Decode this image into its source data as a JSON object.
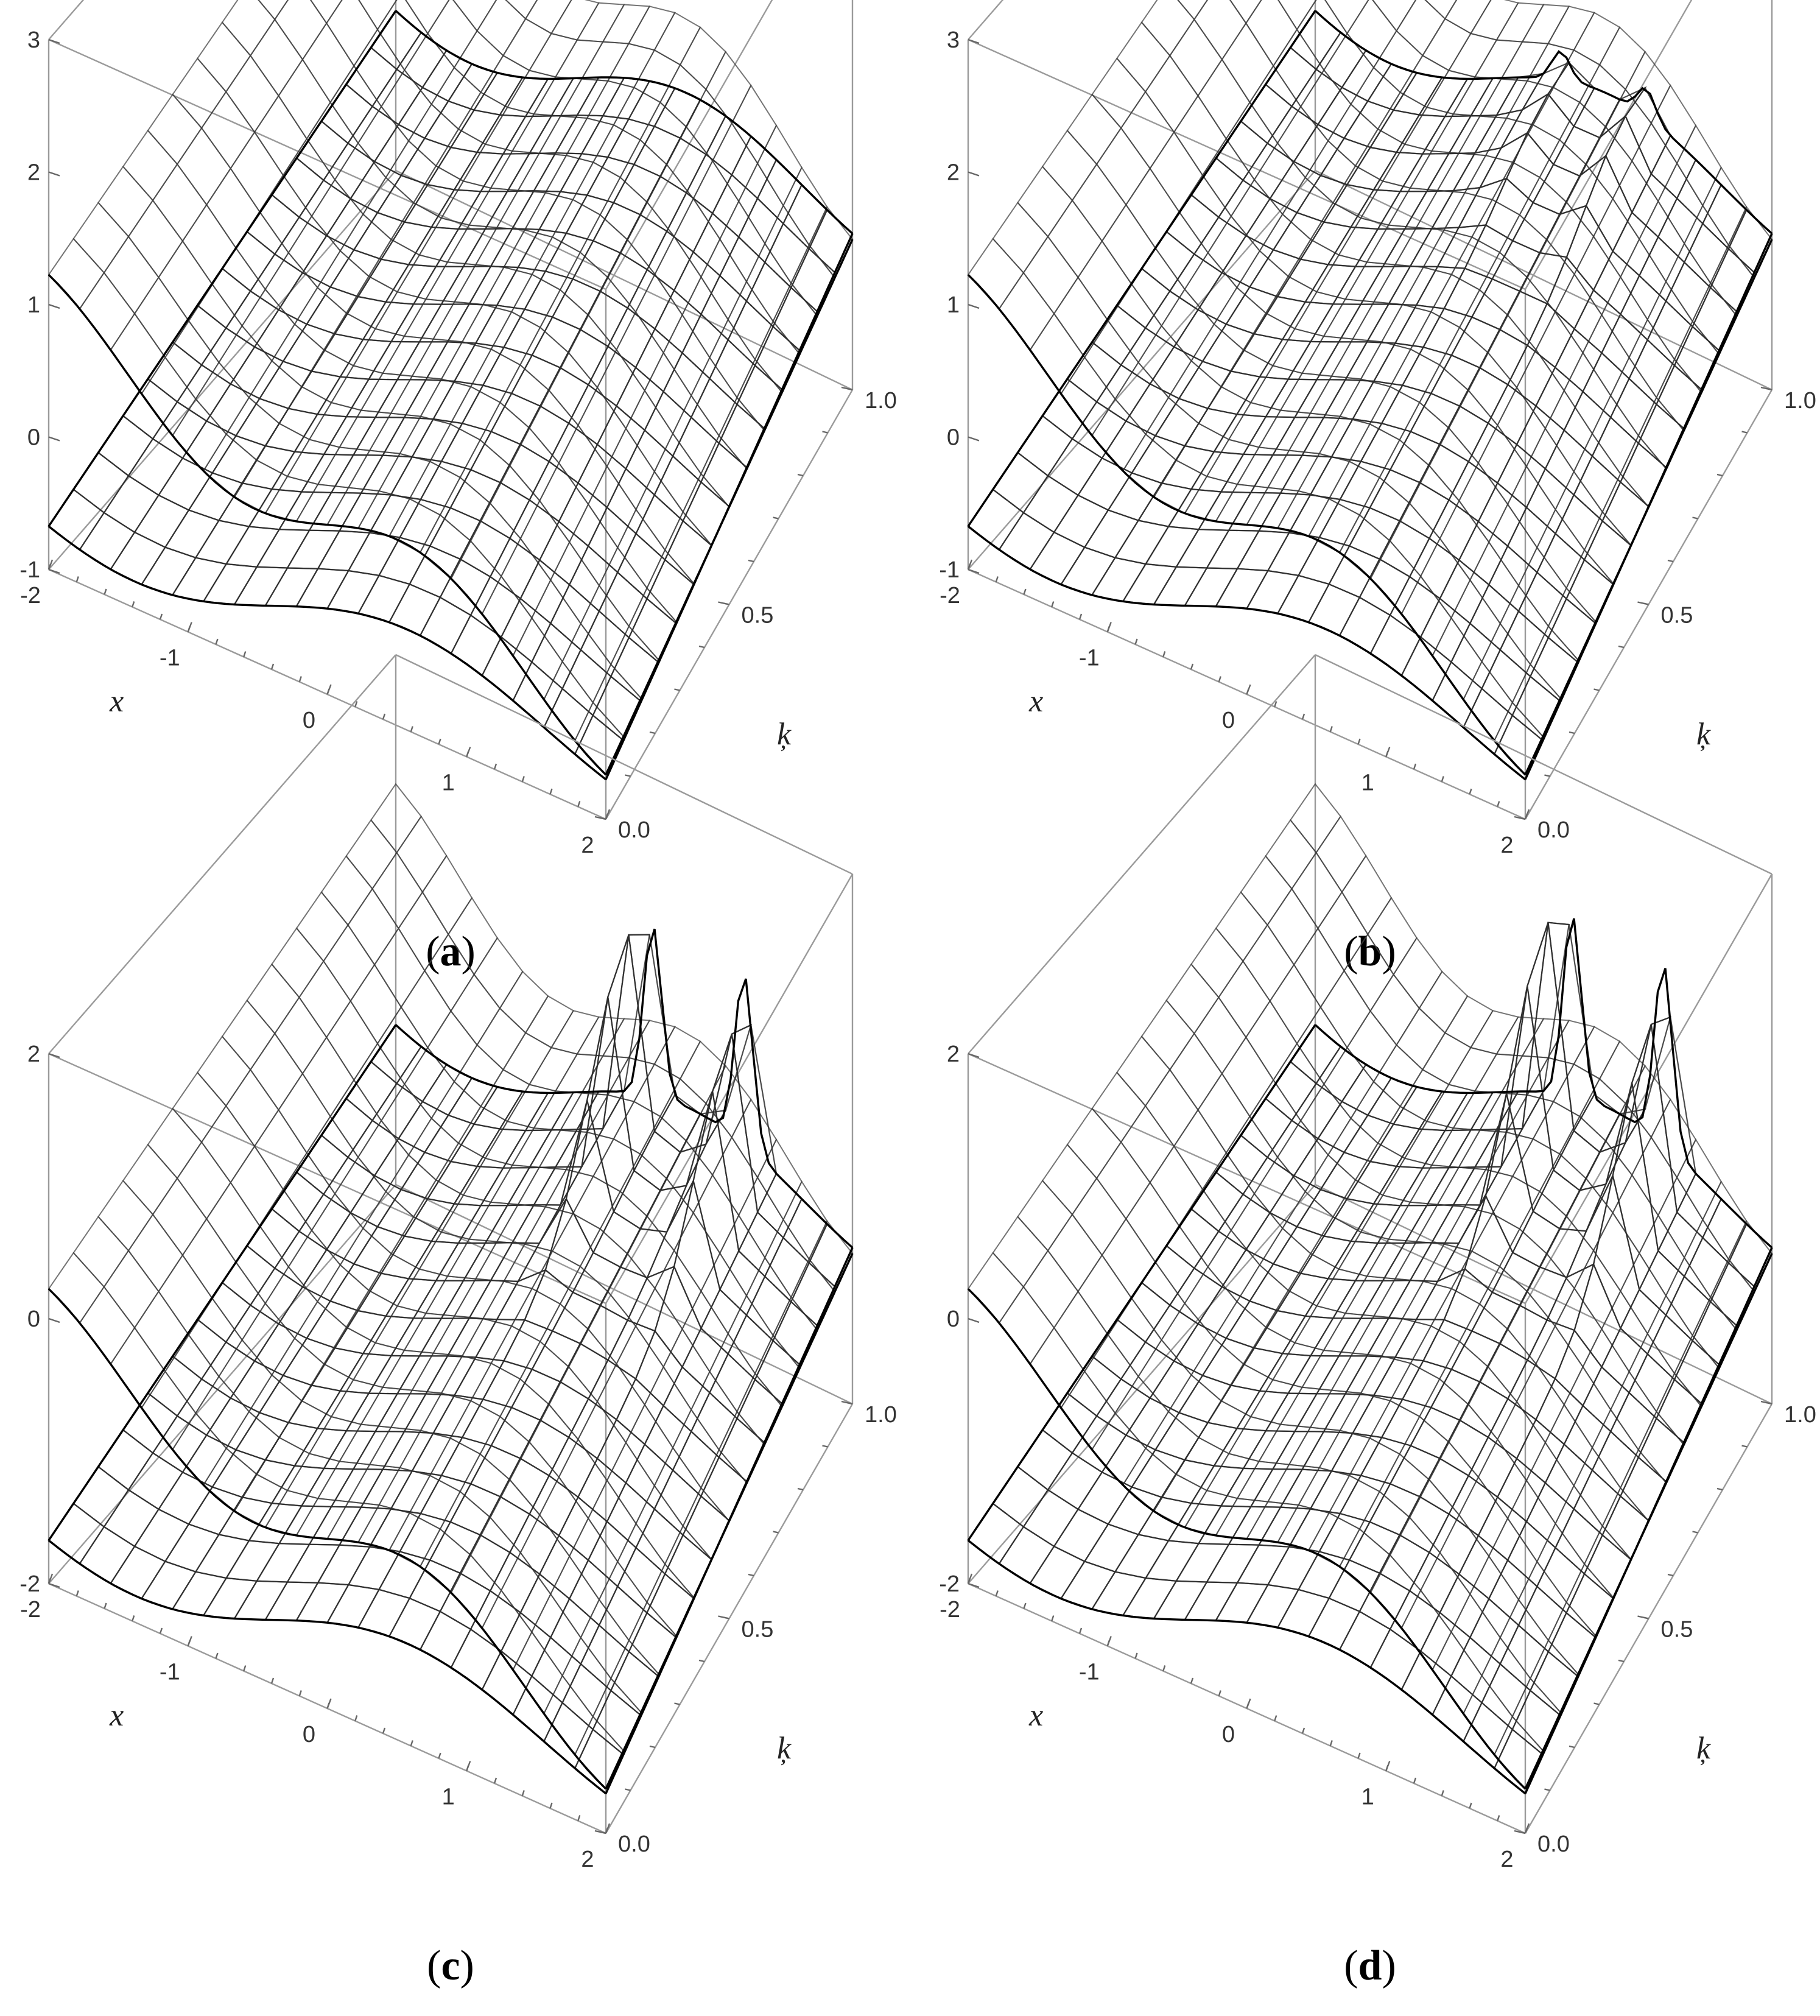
{
  "figure": {
    "panels": [
      {
        "id": "a",
        "caption_open": "(",
        "caption_letter": "a",
        "caption_close": ")"
      },
      {
        "id": "b",
        "caption_open": "(",
        "caption_letter": "b",
        "caption_close": ")"
      },
      {
        "id": "c",
        "caption_open": "(",
        "caption_letter": "c",
        "caption_close": ")"
      },
      {
        "id": "d",
        "caption_open": "(",
        "caption_letter": "d",
        "caption_close": ")"
      }
    ]
  },
  "chart_data": [
    {
      "panel": "a",
      "type": "surface3d",
      "title": "",
      "x_axis": {
        "label": "x",
        "range": [
          -2,
          2
        ],
        "ticks": [
          "-2",
          "-1",
          "0",
          "1",
          "2"
        ]
      },
      "y_axis": {
        "label": "ķ",
        "range": [
          0,
          1
        ],
        "ticks": [
          "0.0",
          "0.5",
          "1.0"
        ]
      },
      "z_axis": {
        "label": "",
        "range": [
          -1,
          3
        ],
        "ticks": [
          "-1",
          "0",
          "1",
          "2",
          "3"
        ]
      },
      "surfaces": [
        {
          "role": "top",
          "colormap": [
            "#b96a2c",
            "#f2a968",
            "#ffd9a6",
            "#7dd63a",
            "#a6ec52"
          ]
        },
        {
          "role": "underside",
          "colormap": [
            "#fff7c6",
            "#fbeea0",
            "#f5e282"
          ]
        }
      ],
      "peaks": []
    },
    {
      "panel": "b",
      "type": "surface3d",
      "title": "",
      "x_axis": {
        "label": "x",
        "range": [
          -2,
          2
        ],
        "ticks": [
          "-2",
          "-1",
          "0",
          "1",
          "2"
        ]
      },
      "y_axis": {
        "label": "ķ",
        "range": [
          0,
          1
        ],
        "ticks": [
          "0.0",
          "0.5",
          "1.0"
        ]
      },
      "z_axis": {
        "label": "",
        "range": [
          -1,
          3
        ],
        "ticks": [
          "-1",
          "0",
          "1",
          "2",
          "3"
        ]
      },
      "surfaces": [
        {
          "role": "top",
          "colormap": [
            "#fffbe3",
            "#fbe4ae",
            "#f2bf6a",
            "#fbe4ae",
            "#9fe85c",
            "#a9f2d6"
          ]
        },
        {
          "role": "underside",
          "colormap": [
            "#ffffff",
            "#ffffff"
          ]
        }
      ],
      "peaks": [
        {
          "x": 0.9,
          "y": 0.9,
          "height": 0.3
        },
        {
          "x": 0.15,
          "y": 0.9,
          "height": 0.3
        }
      ]
    },
    {
      "panel": "c",
      "type": "surface3d",
      "title": "",
      "x_axis": {
        "label": "x",
        "range": [
          -2,
          2
        ],
        "ticks": [
          "-2",
          "-1",
          "0",
          "1",
          "2"
        ]
      },
      "y_axis": {
        "label": "ķ",
        "range": [
          0,
          1
        ],
        "ticks": [
          "0.0",
          "0.5",
          "1.0"
        ]
      },
      "z_axis": {
        "label": "",
        "range": [
          -2,
          2
        ],
        "ticks": [
          "-2",
          "0",
          "2"
        ]
      },
      "surfaces": [
        {
          "role": "top",
          "colormap": [
            "#fffbe3",
            "#fcefc3",
            "#f4c06e",
            "#fcefc3",
            "#a6eb5a",
            "#a9f2d6"
          ]
        },
        {
          "role": "underside",
          "colormap": [
            "#ffffff",
            "#ffffff"
          ]
        }
      ],
      "peaks": [
        {
          "x": 0.25,
          "y": 0.92,
          "height": 1.6
        },
        {
          "x": 1.05,
          "y": 0.92,
          "height": 1.6
        }
      ]
    },
    {
      "panel": "d",
      "type": "surface3d",
      "title": "",
      "x_axis": {
        "label": "x",
        "range": [
          -2,
          2
        ],
        "ticks": [
          "-2",
          "-1",
          "0",
          "1",
          "2"
        ]
      },
      "y_axis": {
        "label": "ķ",
        "range": [
          0,
          1
        ],
        "ticks": [
          "0.0",
          "0.5",
          "1.0"
        ]
      },
      "z_axis": {
        "label": "",
        "range": [
          -2,
          2
        ],
        "ticks": [
          "-2",
          "0",
          "2"
        ]
      },
      "surfaces": [
        {
          "role": "top",
          "colormap": [
            "#fffbe3",
            "#fcefc3",
            "#f4c06e",
            "#fcefc3",
            "#a6eb5a",
            "#a9f2d6"
          ]
        },
        {
          "role": "underside",
          "colormap": [
            "#ffffff",
            "#ffffff"
          ]
        }
      ],
      "peaks": [
        {
          "x": 0.25,
          "y": 0.92,
          "height": 1.7
        },
        {
          "x": 1.05,
          "y": 0.92,
          "height": 1.7
        }
      ]
    }
  ]
}
